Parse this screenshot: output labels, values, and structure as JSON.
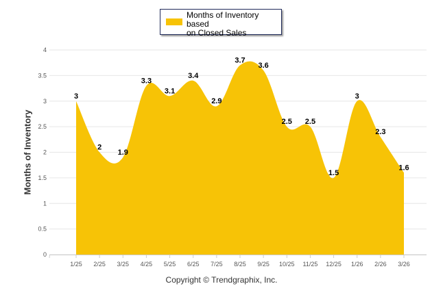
{
  "chart_data": {
    "type": "area",
    "title": "",
    "xlabel": "",
    "ylabel": "Months of Inventory",
    "categories": [
      "1/25",
      "2/25",
      "3/25",
      "4/25",
      "5/25",
      "6/25",
      "7/25",
      "8/25",
      "9/25",
      "10/25",
      "11/25",
      "12/25",
      "1/26",
      "2/26",
      "3/26"
    ],
    "series": [
      {
        "name": "Months of Inventory based on Closed Sales",
        "values": [
          3,
          2,
          1.9,
          3.3,
          3.1,
          3.4,
          2.9,
          3.7,
          3.6,
          2.5,
          2.5,
          1.5,
          3,
          2.3,
          1.6
        ],
        "color": "#f7c306"
      }
    ],
    "ylim": [
      0,
      4
    ],
    "yticks": [
      "0",
      "0.5",
      "1",
      "1.5",
      "2",
      "2.5",
      "3",
      "3.5",
      "4"
    ],
    "grid": true,
    "legend": {
      "position": "top-center",
      "label": "Months of Inventory based on Closed Sales",
      "line1": "Months of Inventory based",
      "line2": "on Closed Sales"
    },
    "data_labels": true
  },
  "footer": {
    "copyright": "Copyright © Trendgraphix, Inc."
  }
}
